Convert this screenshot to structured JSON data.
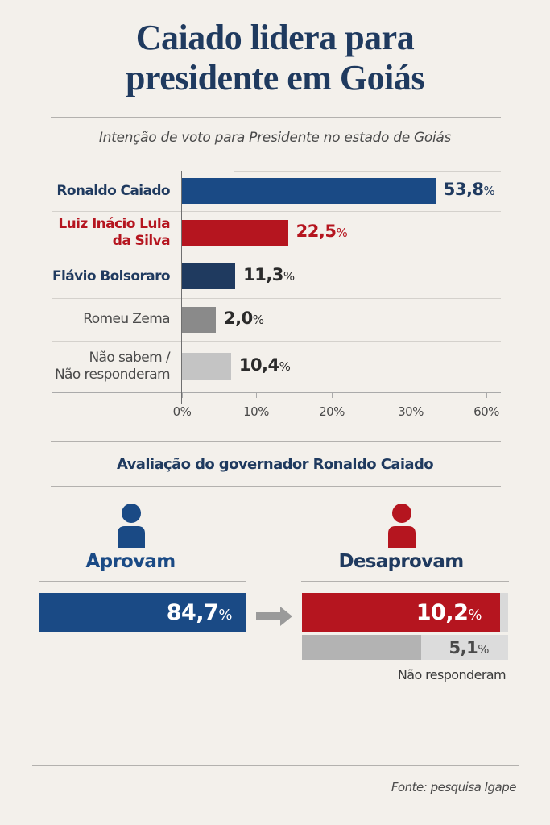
{
  "header": {
    "title_line1": "Caiado lidera para",
    "title_line2": "presidente em Goiás",
    "subtitle": "Intenção de voto para Presidente no estado de Goiás"
  },
  "chart_data": {
    "type": "bar",
    "orientation": "horizontal",
    "title": "Intenção de voto para Presidente no estado de Goiás",
    "categories": [
      "Ronaldo Caiado",
      "Luiz Inácio Lula da Silva",
      "Flávio Bolsoraro",
      "Romeu Zema",
      "Não sabem / Não responderam"
    ],
    "category_lines": [
      [
        "Ronaldo Caiado"
      ],
      [
        "Luiz Inácio Lula",
        "da Silva"
      ],
      [
        "Flávio Bolsoraro"
      ],
      [
        "Romeu Zema"
      ],
      [
        "Não sabem /",
        "Não responderam"
      ]
    ],
    "values": [
      53.8,
      22.5,
      11.3,
      2.0,
      10.4
    ],
    "value_labels": [
      "53,8",
      "22,5",
      "11,3",
      "2,0",
      "10,4"
    ],
    "percent_sign": "%",
    "colors": [
      "#1a4a85",
      "#b5151f",
      "#1f3a5f",
      "#8a8a8a",
      "#c4c4c4"
    ],
    "label_colors": [
      "#1f3a5f",
      "#b5151f",
      "#1f3a5f",
      "#4a4a4a",
      "#4a4a4a"
    ],
    "value_colors": [
      "#1f3a5f",
      "#b5151f",
      "#2b2b2b",
      "#2b2b2b",
      "#2b2b2b"
    ],
    "x_ticks": [
      "0%",
      "10%",
      "20%",
      "30%",
      "60%"
    ],
    "x_tick_positions": [
      0,
      10,
      20,
      30,
      43
    ],
    "xlabel": "",
    "ylabel": "",
    "grid": true
  },
  "evaluation": {
    "title": "Avaliação do governador Ronaldo Caiado",
    "approve": {
      "label": "Aprovam",
      "value": 84.7,
      "value_label": "84,7",
      "color": "#1a4a85"
    },
    "disapprove": {
      "label": "Desaprovam",
      "value": 10.2,
      "value_label": "10,2",
      "color": "#b5151f"
    },
    "no_answer": {
      "label": "Não responderam",
      "value": 5.1,
      "value_label": "5,1"
    },
    "percent_sign": "%"
  },
  "footer": {
    "source": "Fonte: pesquisa Igape"
  }
}
